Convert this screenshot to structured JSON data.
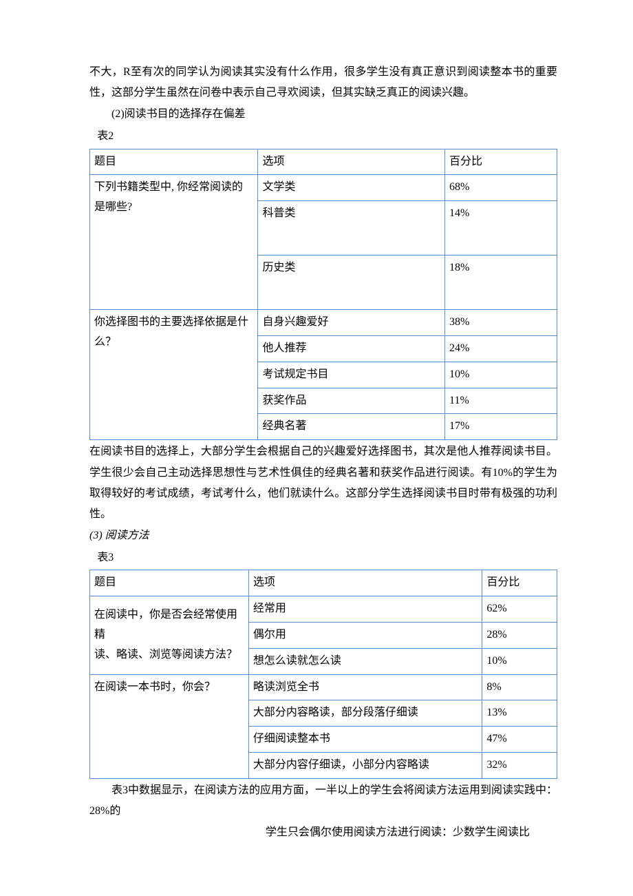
{
  "intro": {
    "p1": "不大，R至有次的同学认为阅读其实没有什么作用，很多学生没有真正意识到阅读整本书的重要性，这部分学生虽然在问卷中表示自己寻欢阅读，但其实缺乏真正的阅读兴趣。",
    "sub2": "(2)阅读书目的选择存在偏差"
  },
  "table2": {
    "label": "表2",
    "headers": {
      "col1": "题目",
      "col2": "选项",
      "col3": "百分比"
    },
    "q1": {
      "text_l1": "下列书籍类型中, 你经常阅读的",
      "text_l2": "是哪些?"
    },
    "q1_rows": [
      {
        "opt": "文学类",
        "pct": "68%"
      },
      {
        "opt": "科普类",
        "pct": "14%"
      },
      {
        "opt": "历史类",
        "pct": "18%"
      }
    ],
    "q2": {
      "text": "你选择图书的主要选择依据是什么？"
    },
    "q2_rows": [
      {
        "opt": "自身兴趣爱好",
        "pct": "38%"
      },
      {
        "opt": "他人推荐",
        "pct": "24%"
      },
      {
        "opt": "考试规定书目",
        "pct": "10%"
      },
      {
        "opt": "获奖作品",
        "pct": "11%"
      },
      {
        "opt": "经典名著",
        "pct": "17%"
      }
    ]
  },
  "mid": {
    "p1": "在阅读书目的选择上，大部分学生会根据自己的兴趣爱好选择图书，其次是他人推荐阅读书目。学生很少会自己主动选择思想性与艺术性俱佳的经典名著和获奖作品进行阅读。有10%的学生为取得较好的考试成绩，考试考什么，他们就读什么。这部分学生选择阅读书目时带有极强的功利性。",
    "sub3": "(3) 阅读方法"
  },
  "table3": {
    "label": "表3",
    "headers": {
      "col1": "题目",
      "col2": "选项",
      "col3": "百分比"
    },
    "q1": {
      "text_l1": "在阅读中，你是否会经常使用精",
      "text_l2": "读、略读、浏览等阅读方法？"
    },
    "q1_rows": [
      {
        "opt": "经常用",
        "pct": "62%"
      },
      {
        "opt": "偶尔用",
        "pct": "28%"
      },
      {
        "opt": "想怎么读就怎么读",
        "pct": "10%"
      }
    ],
    "q2": {
      "text": "在阅读一本书时，你会？"
    },
    "q2_rows": [
      {
        "opt": "略读浏览全书",
        "pct": "8%"
      },
      {
        "opt": "大部分内容略读，部分段落仔细读",
        "pct": "13%"
      },
      {
        "opt": "仔细阅读整本书",
        "pct": "47%"
      },
      {
        "opt": "大部分内容仔细读，小部分内容略读",
        "pct": "32%"
      }
    ]
  },
  "outro": {
    "p1": "表3中数据显示，在阅读方法的应用方面，一半以上的学生会将阅读方法运用到阅读实践中：28%的",
    "p2": "学生只会偶尔使用阅读方法进行阅读：少数学生阅读比"
  },
  "style": {
    "border_color": "#558ed5",
    "col1_width": "36%",
    "col2_width": "40%",
    "col3_width": "24%",
    "t3_col1_width": "34%",
    "t3_col2_width": "50%",
    "t3_col3_width": "16%"
  }
}
